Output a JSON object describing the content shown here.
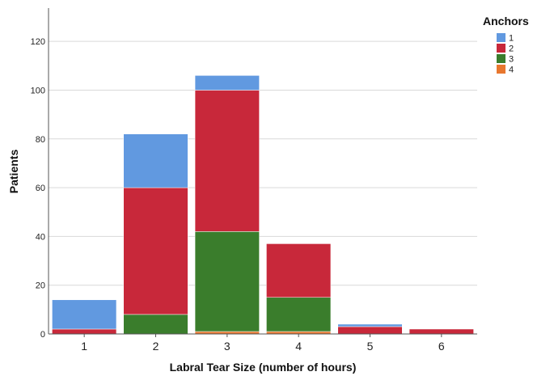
{
  "chart_data": {
    "type": "bar",
    "stacked": true,
    "xlabel": "Labral Tear Size (number of hours)",
    "ylabel": "Patients",
    "categories": [
      "1",
      "2",
      "3",
      "4",
      "5",
      "6"
    ],
    "ylim": [
      0,
      130
    ],
    "yticks": [
      0,
      20,
      40,
      60,
      80,
      100,
      120
    ],
    "grid": true,
    "legend": {
      "title": "Anchors",
      "placement": "top-right"
    },
    "series": [
      {
        "name": "4",
        "color": "#e8772e",
        "values": [
          0,
          0,
          1,
          1,
          0,
          0
        ]
      },
      {
        "name": "3",
        "color": "#3a7d2c",
        "values": [
          0,
          8,
          41,
          14,
          0,
          0
        ]
      },
      {
        "name": "2",
        "color": "#c8283a",
        "values": [
          2,
          52,
          58,
          22,
          3,
          2
        ]
      },
      {
        "name": "1",
        "color": "#6199e0",
        "values": [
          12,
          22,
          6,
          0,
          1,
          0
        ]
      }
    ],
    "legend_order": [
      "1",
      "2",
      "3",
      "4"
    ]
  }
}
